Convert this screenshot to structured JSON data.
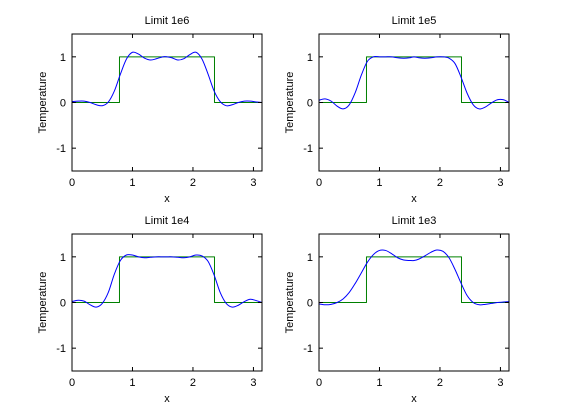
{
  "chart_data": [
    {
      "type": "line",
      "title": "Limit 1e6",
      "xlabel": "x",
      "ylabel": "Temperature",
      "xlim": [
        0,
        3.14159
      ],
      "ylim": [
        -1.5,
        1.5
      ],
      "xticks": [
        "0",
        "1",
        "2",
        "3"
      ],
      "yticks": [
        "-1",
        "0",
        "1"
      ],
      "grid": false,
      "series": [
        {
          "kind": "step",
          "color": "#008000",
          "x": [
            0,
            0.785,
            0.785,
            2.356,
            2.356,
            3.1416
          ],
          "y": [
            0,
            0,
            1,
            1,
            0,
            0
          ]
        },
        {
          "kind": "smooth",
          "color": "#0000ff",
          "x": [
            0,
            0.1,
            0.2,
            0.3,
            0.4,
            0.5,
            0.6,
            0.7,
            0.8,
            0.9,
            1.0,
            1.1,
            1.2,
            1.3,
            1.4,
            1.5,
            1.571,
            1.65,
            1.75,
            1.85,
            1.95,
            2.05,
            2.15,
            2.25,
            2.35,
            2.45,
            2.55,
            2.65,
            2.75,
            2.85,
            2.95,
            3.05,
            3.1416
          ],
          "y": [
            0.02,
            0.03,
            0.03,
            0.0,
            -0.05,
            -0.07,
            0.01,
            0.25,
            0.62,
            0.95,
            1.1,
            1.06,
            0.97,
            0.93,
            0.96,
            1.0,
            1.0,
            0.98,
            0.93,
            0.96,
            1.05,
            1.1,
            0.95,
            0.62,
            0.25,
            0.02,
            -0.07,
            -0.05,
            0.0,
            0.03,
            0.03,
            0.01,
            0.0
          ]
        }
      ]
    },
    {
      "type": "line",
      "title": "Limit 1e5",
      "xlabel": "x",
      "ylabel": "Temperature",
      "xlim": [
        0,
        3.14159
      ],
      "ylim": [
        -1.5,
        1.5
      ],
      "xticks": [
        "0",
        "1",
        "2",
        "3"
      ],
      "yticks": [
        "-1",
        "0",
        "1"
      ],
      "grid": false,
      "series": [
        {
          "kind": "step",
          "color": "#008000",
          "x": [
            0,
            0.785,
            0.785,
            2.356,
            2.356,
            3.1416
          ],
          "y": [
            0,
            0,
            1,
            1,
            0,
            0
          ]
        },
        {
          "kind": "smooth",
          "color": "#0000ff",
          "x": [
            0,
            0.1,
            0.2,
            0.3,
            0.4,
            0.5,
            0.6,
            0.7,
            0.8,
            0.9,
            1.0,
            1.1,
            1.2,
            1.3,
            1.4,
            1.5,
            1.571,
            1.65,
            1.75,
            1.85,
            1.95,
            2.05,
            2.15,
            2.25,
            2.35,
            2.45,
            2.55,
            2.65,
            2.75,
            2.85,
            2.95,
            3.05,
            3.1416
          ],
          "y": [
            0.05,
            0.08,
            0.03,
            -0.08,
            -0.14,
            -0.05,
            0.22,
            0.6,
            0.9,
            1.0,
            1.0,
            1.0,
            1.0,
            0.98,
            0.97,
            0.98,
            1.0,
            0.98,
            0.97,
            0.98,
            1.0,
            1.0,
            0.97,
            0.85,
            0.55,
            0.2,
            -0.05,
            -0.14,
            -0.1,
            -0.01,
            0.06,
            0.06,
            0.0
          ]
        }
      ]
    },
    {
      "type": "line",
      "title": "Limit 1e4",
      "xlabel": "x",
      "ylabel": "Temperature",
      "xlim": [
        0,
        3.14159
      ],
      "ylim": [
        -1.5,
        1.5
      ],
      "xticks": [
        "0",
        "1",
        "2",
        "3"
      ],
      "yticks": [
        "-1",
        "0",
        "1"
      ],
      "grid": false,
      "series": [
        {
          "kind": "step",
          "color": "#008000",
          "x": [
            0,
            0.785,
            0.785,
            2.356,
            2.356,
            3.1416
          ],
          "y": [
            0,
            0,
            1,
            1,
            0,
            0
          ]
        },
        {
          "kind": "smooth",
          "color": "#0000ff",
          "x": [
            0,
            0.1,
            0.2,
            0.3,
            0.4,
            0.5,
            0.6,
            0.7,
            0.8,
            0.9,
            1.0,
            1.1,
            1.2,
            1.3,
            1.4,
            1.5,
            1.571,
            1.65,
            1.75,
            1.85,
            1.95,
            2.05,
            2.15,
            2.25,
            2.35,
            2.45,
            2.55,
            2.65,
            2.75,
            2.85,
            2.95,
            3.05,
            3.1416
          ],
          "y": [
            0.02,
            0.05,
            0.03,
            -0.05,
            -0.1,
            -0.02,
            0.22,
            0.62,
            0.92,
            1.04,
            1.04,
            1.0,
            0.98,
            0.99,
            1.0,
            1.0,
            1.0,
            1.0,
            0.99,
            0.98,
            1.0,
            1.04,
            1.02,
            0.9,
            0.6,
            0.22,
            -0.02,
            -0.1,
            -0.06,
            0.02,
            0.07,
            0.04,
            0.0
          ]
        }
      ]
    },
    {
      "type": "line",
      "title": "Limit 1e3",
      "xlabel": "x",
      "ylabel": "Temperature",
      "xlim": [
        0,
        3.14159
      ],
      "ylim": [
        -1.5,
        1.5
      ],
      "xticks": [
        "0",
        "1",
        "2",
        "3"
      ],
      "yticks": [
        "-1",
        "0",
        "1"
      ],
      "grid": false,
      "series": [
        {
          "kind": "step",
          "color": "#008000",
          "x": [
            0,
            0.785,
            0.785,
            2.356,
            2.356,
            3.1416
          ],
          "y": [
            0,
            0,
            1,
            1,
            0,
            0
          ]
        },
        {
          "kind": "smooth",
          "color": "#0000ff",
          "x": [
            0,
            0.1,
            0.2,
            0.3,
            0.4,
            0.5,
            0.6,
            0.7,
            0.8,
            0.9,
            1.0,
            1.1,
            1.2,
            1.3,
            1.4,
            1.5,
            1.571,
            1.65,
            1.75,
            1.85,
            1.95,
            2.05,
            2.15,
            2.25,
            2.35,
            2.45,
            2.55,
            2.65,
            2.75,
            2.85,
            2.95,
            3.05,
            3.1416
          ],
          "y": [
            -0.03,
            -0.05,
            -0.04,
            0.0,
            0.08,
            0.22,
            0.42,
            0.65,
            0.88,
            1.05,
            1.14,
            1.14,
            1.07,
            0.98,
            0.93,
            0.92,
            0.92,
            0.95,
            1.02,
            1.1,
            1.15,
            1.12,
            0.98,
            0.72,
            0.42,
            0.15,
            0.0,
            -0.05,
            -0.04,
            -0.02,
            0.0,
            0.01,
            0.02
          ]
        }
      ]
    }
  ]
}
